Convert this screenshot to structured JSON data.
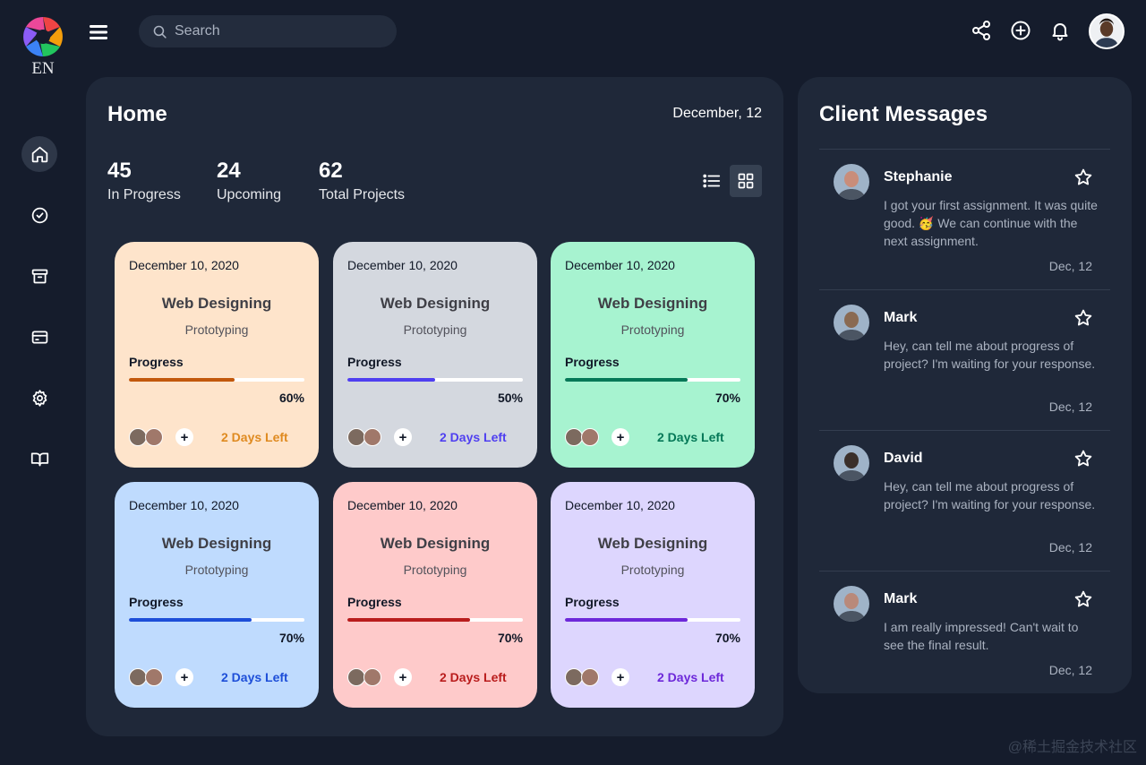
{
  "app": {
    "logo_text": "EN"
  },
  "sidebar": {
    "items": [
      {
        "name": "home",
        "icon": "home-icon",
        "active": true
      },
      {
        "name": "tasks",
        "icon": "check-circle-icon",
        "active": false
      },
      {
        "name": "archive",
        "icon": "archive-icon",
        "active": false
      },
      {
        "name": "billing",
        "icon": "credit-card-icon",
        "active": false
      },
      {
        "name": "settings",
        "icon": "gear-icon",
        "active": false
      },
      {
        "name": "docs",
        "icon": "book-icon",
        "active": false
      }
    ]
  },
  "topbar": {
    "search": {
      "placeholder": "Search",
      "value": ""
    },
    "icons": [
      "share-icon",
      "add-circle-icon",
      "bell-icon"
    ]
  },
  "home": {
    "title": "Home",
    "date": "December, 12",
    "stats": [
      {
        "value": "45",
        "label": "In Progress"
      },
      {
        "value": "24",
        "label": "Upcoming"
      },
      {
        "value": "62",
        "label": "Total Projects"
      }
    ],
    "view": "grid",
    "cards": [
      {
        "date": "December 10, 2020",
        "title": "Web Designing",
        "subtitle": "Prototyping",
        "progress_label": "Progress",
        "progress": 60,
        "progress_text": "60%",
        "days_left": "2 Days Left",
        "bg": "#fee4cb",
        "accent": "#ff942e",
        "accent_text": "#df8a20",
        "bar": "#c2580c"
      },
      {
        "date": "December 10, 2020",
        "title": "Web Designing",
        "subtitle": "Prototyping",
        "progress_label": "Progress",
        "progress": 50,
        "progress_text": "50%",
        "days_left": "2 Days Left",
        "bg": "#d4d8df",
        "accent": "#4f3ff0",
        "accent_text": "#4f3ff0",
        "bar": "#4f3ff0"
      },
      {
        "date": "December 10, 2020",
        "title": "Web Designing",
        "subtitle": "Prototyping",
        "progress_label": "Progress",
        "progress": 70,
        "progress_text": "70%",
        "days_left": "2 Days Left",
        "bg": "#a7f3d0",
        "accent": "#047857",
        "accent_text": "#047857",
        "bar": "#047857"
      },
      {
        "date": "December 10, 2020",
        "title": "Web Designing",
        "subtitle": "Prototyping",
        "progress_label": "Progress",
        "progress": 70,
        "progress_text": "70%",
        "days_left": "2 Days Left",
        "bg": "#bfdbfe",
        "accent": "#1d4ed8",
        "accent_text": "#1d4ed8",
        "bar": "#1d4ed8"
      },
      {
        "date": "December 10, 2020",
        "title": "Web Designing",
        "subtitle": "Prototyping",
        "progress_label": "Progress",
        "progress": 70,
        "progress_text": "70%",
        "days_left": "2 Days Left",
        "bg": "#fecaca",
        "accent": "#b91c1c",
        "accent_text": "#b91c1c",
        "bar": "#b91c1c"
      },
      {
        "date": "December 10, 2020",
        "title": "Web Designing",
        "subtitle": "Prototyping",
        "progress_label": "Progress",
        "progress": 70,
        "progress_text": "70%",
        "days_left": "2 Days Left",
        "bg": "#ddd6fe",
        "accent": "#6d28d9",
        "accent_text": "#6d28d9",
        "bar": "#6d28d9"
      }
    ]
  },
  "messages": {
    "title": "Client Messages",
    "items": [
      {
        "name": "Stephanie",
        "text": "I got your first assignment. It was quite good. 🥳 We can continue with the next assignment.",
        "time": "Dec, 12",
        "avatar_color": "#c98d7a"
      },
      {
        "name": "Mark",
        "text": "Hey, can tell me about progress of project? I'm waiting for your response.",
        "time": "Dec, 12",
        "avatar_color": "#8a6a52"
      },
      {
        "name": "David",
        "text": "Hey, can tell me about progress of project? I'm waiting for your response.",
        "time": "Dec, 12",
        "avatar_color": "#3a2f2a"
      },
      {
        "name": "Mark",
        "text": "I am really impressed! Can't wait to see the final result.",
        "time": "Dec, 12",
        "avatar_color": "#b9897a"
      }
    ]
  },
  "watermark": "@稀土掘金技术社区"
}
